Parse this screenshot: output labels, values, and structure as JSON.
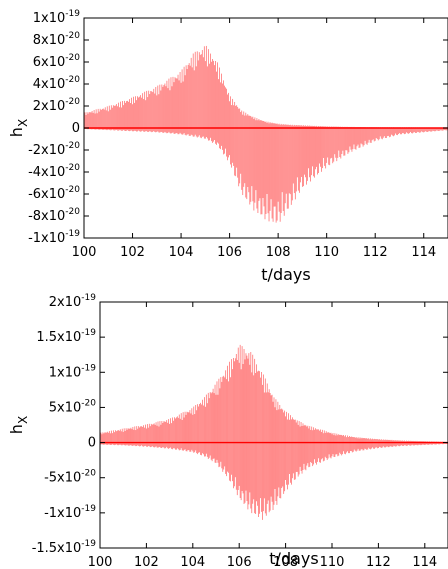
{
  "chart_data": [
    {
      "type": "line",
      "xlabel": "t/days",
      "ylabel": "h",
      "ylabel_subscript": "X",
      "xlim": [
        100,
        115
      ],
      "ylim": [
        -1e-19,
        1e-19
      ],
      "x_ticks": [
        100,
        102,
        104,
        106,
        108,
        110,
        112,
        114
      ],
      "x_tick_labels": [
        "100",
        "102",
        "104",
        "106",
        "108",
        "110",
        "112",
        "114"
      ],
      "y_ticks": [
        -1e-19,
        -8e-20,
        -6e-20,
        -4e-20,
        -2e-20,
        0,
        2e-20,
        4e-20,
        6e-20,
        8e-20,
        1e-19
      ],
      "y_tick_labels": [
        {
          "mant": "-1x10",
          "exp": "-19"
        },
        {
          "mant": "-8x10",
          "exp": "-20"
        },
        {
          "mant": "-6x10",
          "exp": "-20"
        },
        {
          "mant": "-4x10",
          "exp": "-20"
        },
        {
          "mant": "-2x10",
          "exp": "-20"
        },
        {
          "mant": "0",
          "exp": ""
        },
        {
          "mant": "2x10",
          "exp": "-20"
        },
        {
          "mant": "4x10",
          "exp": "-20"
        },
        {
          "mant": "6x10",
          "exp": "-20"
        },
        {
          "mant": "8x10",
          "exp": "-20"
        },
        {
          "mant": "1x10",
          "exp": "-19"
        }
      ],
      "grid": false,
      "color": "#ff0000",
      "envelope": {
        "t": [
          100,
          101,
          102,
          103,
          104,
          104.5,
          105,
          105.5,
          106,
          106.5,
          107,
          107.5,
          108,
          108.5,
          109,
          110,
          111,
          112,
          113,
          115
        ],
        "upper": [
          1.4e-20,
          2e-20,
          2.8e-20,
          3.8e-20,
          5.2e-20,
          6.8e-20,
          7.6e-20,
          6e-20,
          3e-20,
          1.6e-20,
          1e-20,
          6e-21,
          4e-21,
          3e-21,
          2.5e-21,
          1.5e-21,
          1e-21,
          8e-22,
          6e-22,
          4e-22
        ],
        "lower": [
          -1e-21,
          -2e-21,
          -3e-21,
          -4e-21,
          -6e-21,
          -8e-21,
          -1e-20,
          -1.6e-20,
          -3.2e-20,
          -6e-20,
          -7.5e-20,
          -8.4e-20,
          -8.8e-20,
          -7.2e-20,
          -5.5e-20,
          -3.6e-20,
          -2.2e-20,
          -1.2e-20,
          -6e-21,
          -2e-21
        ]
      }
    },
    {
      "type": "line",
      "xlabel": "t/days",
      "ylabel": "h",
      "ylabel_subscript": "X",
      "xlim": [
        100,
        115
      ],
      "ylim": [
        -1.5e-19,
        2e-19
      ],
      "x_ticks": [
        100,
        102,
        104,
        106,
        108,
        110,
        112,
        114
      ],
      "x_tick_labels": [
        "100",
        "102",
        "104",
        "106",
        "108",
        "110",
        "112",
        "114"
      ],
      "y_ticks": [
        -1.5e-19,
        -1e-19,
        -5e-20,
        0,
        5e-20,
        1e-19,
        1.5e-19,
        2e-19
      ],
      "y_tick_labels": [
        {
          "mant": "-1.5x10",
          "exp": "-19"
        },
        {
          "mant": "-1x10",
          "exp": "-19"
        },
        {
          "mant": "-5x10",
          "exp": "-20"
        },
        {
          "mant": "0",
          "exp": ""
        },
        {
          "mant": "5x10",
          "exp": "-20"
        },
        {
          "mant": "1x10",
          "exp": "-19"
        },
        {
          "mant": "1.5x10",
          "exp": "-19"
        },
        {
          "mant": "2x10",
          "exp": "-19"
        }
      ],
      "grid": false,
      "color": "#ff0000",
      "envelope": {
        "t": [
          100,
          101,
          102,
          103,
          104,
          104.5,
          105,
          105.5,
          106,
          106.5,
          107,
          107.5,
          108,
          108.5,
          109,
          110,
          111,
          112,
          113,
          115
        ],
        "upper": [
          1.4e-20,
          2e-20,
          2.6e-20,
          3.4e-20,
          5e-20,
          6.5e-20,
          8.5e-20,
          1.1e-19,
          1.4e-19,
          1.3e-19,
          1e-19,
          6.5e-20,
          4.5e-20,
          3.2e-20,
          2.4e-20,
          1.4e-20,
          8e-21,
          5e-21,
          3e-21,
          1e-21
        ],
        "lower": [
          -3e-21,
          -4e-21,
          -6e-21,
          -9e-21,
          -1.4e-20,
          -2e-20,
          -3e-20,
          -5e-20,
          -8e-20,
          -1e-19,
          -1.1e-19,
          -9.5e-20,
          -7e-20,
          -5e-20,
          -3.6e-20,
          -2.2e-20,
          -1.3e-20,
          -8e-21,
          -5e-21,
          -2e-21
        ]
      }
    }
  ]
}
